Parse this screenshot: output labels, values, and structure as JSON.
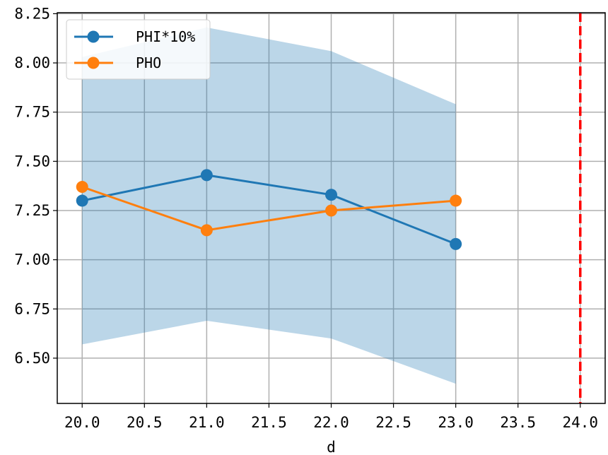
{
  "chart_data": {
    "type": "line",
    "xlabel": "d",
    "ylabel": "",
    "title": "",
    "xlim": [
      19.8,
      24.2
    ],
    "ylim": [
      6.27,
      8.255
    ],
    "x_ticks": [
      "20.0",
      "20.5",
      "21.0",
      "21.5",
      "22.0",
      "22.5",
      "23.0",
      "23.5",
      "24.0"
    ],
    "y_ticks": [
      "6.50",
      "6.75",
      "7.00",
      "7.25",
      "7.50",
      "7.75",
      "8.00",
      "8.25"
    ],
    "x_tick_values": [
      20.0,
      20.5,
      21.0,
      21.5,
      22.0,
      22.5,
      23.0,
      23.5,
      24.0
    ],
    "y_tick_values": [
      6.5,
      6.75,
      7.0,
      7.25,
      7.5,
      7.75,
      8.0,
      8.25
    ],
    "grid": true,
    "legend_position": "top-left",
    "series": [
      {
        "name": "PHI*10%",
        "color": "#1f77b4",
        "x": [
          20,
          21,
          22,
          23
        ],
        "y": [
          7.3,
          7.43,
          7.33,
          7.08
        ]
      },
      {
        "name": "PHO",
        "color": "#ff7f0e",
        "x": [
          20,
          21,
          22,
          23
        ],
        "y": [
          7.37,
          7.15,
          7.25,
          7.3
        ]
      }
    ],
    "band": {
      "color": "#1f77b4",
      "opacity": 0.3,
      "x": [
        20,
        21,
        22,
        23
      ],
      "upper": [
        8.03,
        8.18,
        8.06,
        7.79
      ],
      "lower": [
        6.57,
        6.69,
        6.6,
        6.37
      ]
    },
    "vline": {
      "x": 24.0,
      "color": "#ff0000",
      "style": "dashed"
    }
  }
}
